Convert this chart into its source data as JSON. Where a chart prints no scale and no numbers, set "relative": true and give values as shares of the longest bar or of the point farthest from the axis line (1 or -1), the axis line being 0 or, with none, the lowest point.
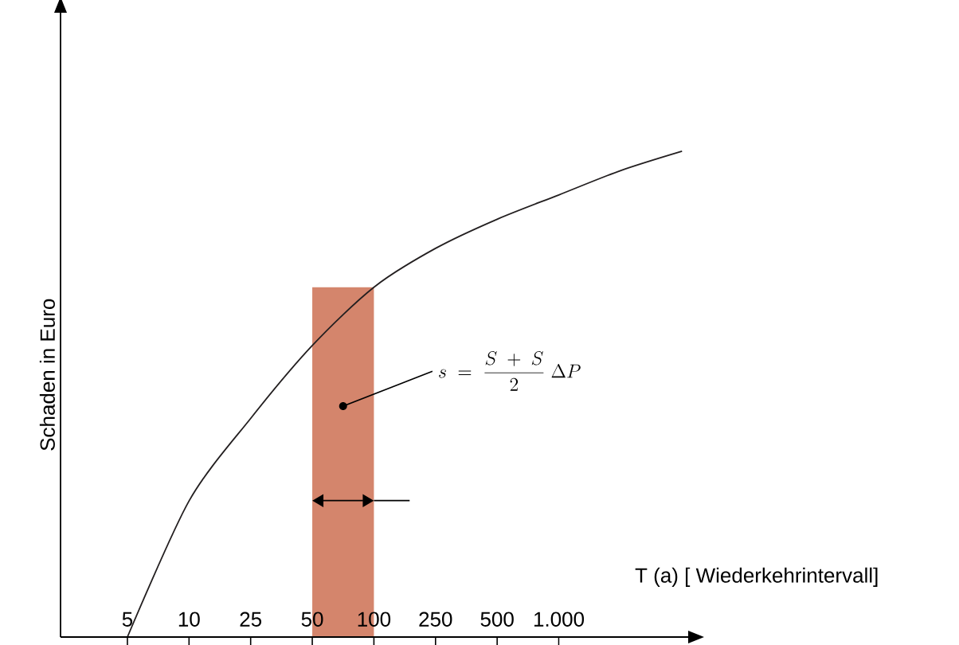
{
  "chart_data": {
    "type": "line",
    "relative": true,
    "xlabel": "T (a) [ Wiederkehrintervall]",
    "ylabel": "Schaden in Euro",
    "categories": [
      "5",
      "10",
      "25",
      "50",
      "100",
      "250",
      "500",
      "1.000",
      null,
      null
    ],
    "series": [
      {
        "color": "#231f20",
        "values": [
          0,
          0.28,
          0.45,
          0.6,
          0.72,
          0.8,
          0.86,
          0.91,
          0.96,
          1
        ]
      }
    ],
    "bands": [
      {
        "axis": "x",
        "from": "50",
        "to": "100",
        "color": "#d4856c"
      }
    ],
    "annotations": [
      "s \\;=\\; \\frac{S\\;+\\;S}{2}\\;\\Delta P"
    ],
    "marker": "none",
    "grid": false
  }
}
